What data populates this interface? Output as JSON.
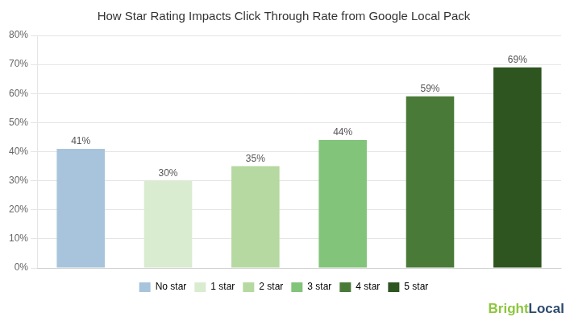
{
  "chart_data": {
    "type": "bar",
    "title": "How Star Rating Impacts Click Through Rate from Google Local Pack",
    "categories": [
      "No star",
      "1 star",
      "2 star",
      "3 star",
      "4 star",
      "5 star"
    ],
    "values": [
      0.41,
      0.3,
      0.35,
      0.44,
      0.59,
      0.69
    ],
    "value_labels": [
      "41%",
      "30%",
      "35%",
      "44%",
      "59%",
      "69%"
    ],
    "colors": [
      "#a8c4dc",
      "#d9ecd0",
      "#b5d9a0",
      "#82c47a",
      "#4a7a38",
      "#2e5520"
    ],
    "ylim": [
      0,
      0.8
    ],
    "yticks": [
      {
        "value": 0,
        "label": "0%"
      },
      {
        "value": 0.1,
        "label": "10%"
      },
      {
        "value": 0.2,
        "label": "20%"
      },
      {
        "value": 0.3,
        "label": "30%"
      },
      {
        "value": 0.4,
        "label": "40%"
      },
      {
        "value": 0.5,
        "label": "50%"
      },
      {
        "value": 0.6,
        "label": "60%"
      },
      {
        "value": 0.7,
        "label": "70%"
      },
      {
        "value": 0.8,
        "label": "80%"
      }
    ],
    "grid": true,
    "legend": "bottom",
    "data_labels": true,
    "tick_labels": "y",
    "annotations": [
      {
        "text": "Bright",
        "color": "#8dc63f"
      },
      {
        "text": "Local",
        "color": "#2d4a6e"
      }
    ]
  }
}
